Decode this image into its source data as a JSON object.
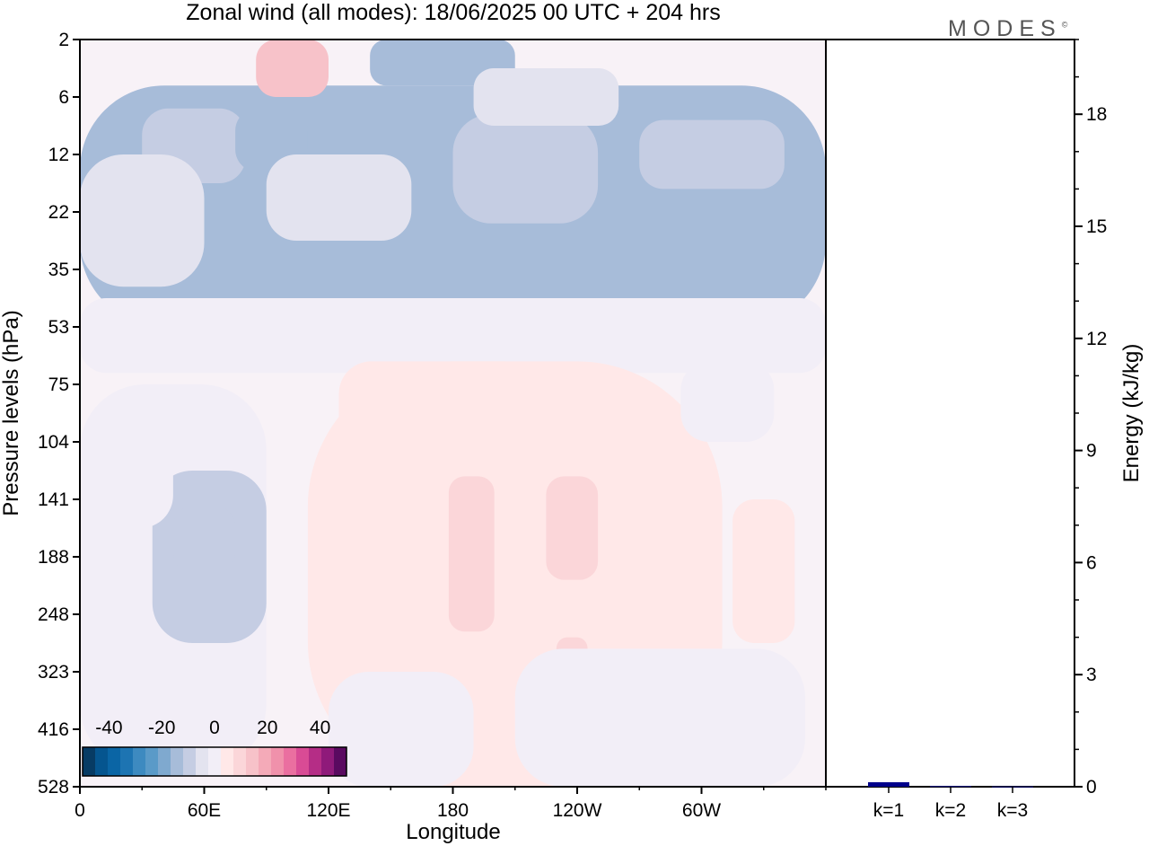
{
  "title": "Zonal wind (all modes):  18/06/2025  00 UTC  + 204 hrs",
  "logo_text": "MODES",
  "logo_mark": "©",
  "colors": {
    "panel_bg": "#f8f2f7",
    "neg": [
      "#f2eef7",
      "#e3e3ef",
      "#c5cde3",
      "#a7bcd9",
      "#7fa9cf",
      "#5a9ac8",
      "#3d8ac0",
      "#1d74b2",
      "#0a65a5",
      "#05558f",
      "#073b64"
    ],
    "pos": [
      "#ffe8e8",
      "#fbd6d9",
      "#f7c2c9",
      "#f4aab8",
      "#f091ab",
      "#ea6fa0",
      "#d94b95",
      "#b52d86",
      "#8f1a7a",
      "#5a0a60"
    ],
    "energy_bar": "#00008b"
  },
  "chart_data": [
    {
      "type": "heatmap",
      "title": "Zonal wind (all modes):  18/06/2025  00 UTC  + 204 hrs",
      "xlabel": "Longitude",
      "ylabel": "Pressure levels (hPa)",
      "x_ticks": [
        "0",
        "60E",
        "120E",
        "180",
        "120W",
        "60W"
      ],
      "x_tick_values": [
        0,
        60,
        120,
        180,
        240,
        300
      ],
      "x_range": [
        0,
        360
      ],
      "y_ticks": [
        "2",
        "6",
        "12",
        "22",
        "35",
        "53",
        "75",
        "104",
        "141",
        "188",
        "248",
        "323",
        "416",
        "528"
      ],
      "colorbar": {
        "ticks": [
          "-40",
          "-20",
          "0",
          "20",
          "40"
        ],
        "tick_values": [
          -40,
          -20,
          0,
          20,
          40
        ],
        "range": [
          -50,
          50
        ]
      },
      "blobs": [
        {
          "lon": [
            0,
            360
          ],
          "lev": [
            0.8,
            5.0
          ],
          "u": -18
        },
        {
          "lon": [
            30,
            80
          ],
          "lev": [
            1.2,
            2.5
          ],
          "u": -10
        },
        {
          "lon": [
            75,
            110
          ],
          "lev": [
            1.2,
            2.3
          ],
          "u": -15
        },
        {
          "lon": [
            180,
            250
          ],
          "lev": [
            1.3,
            3.2
          ],
          "u": -10
        },
        {
          "lon": [
            270,
            340
          ],
          "lev": [
            1.4,
            2.6
          ],
          "u": -10
        },
        {
          "lon": [
            0,
            60
          ],
          "lev": [
            2.0,
            4.3
          ],
          "u": -6
        },
        {
          "lon": [
            90,
            160
          ],
          "lev": [
            2.0,
            3.5
          ],
          "u": -6
        },
        {
          "lon": [
            85,
            120
          ],
          "lev": [
            0.0,
            1.0
          ],
          "u": 10
        },
        {
          "lon": [
            140,
            210
          ],
          "lev": [
            -0.3,
            0.8
          ],
          "u": -15
        },
        {
          "lon": [
            190,
            260
          ],
          "lev": [
            0.5,
            1.5
          ],
          "u": -6
        },
        {
          "lon": [
            0,
            360
          ],
          "lev": [
            4.5,
            5.8
          ],
          "u": -4
        },
        {
          "lon": [
            110,
            310
          ],
          "lev": [
            5.6,
            13.6
          ],
          "u": 3
        },
        {
          "lon": [
            125,
            220
          ],
          "lev": [
            5.6,
            7.2
          ],
          "u": 3
        },
        {
          "lon": [
            195,
            225
          ],
          "lev": [
            7.2,
            11.6
          ],
          "u": 4
        },
        {
          "lon": [
            178,
            200
          ],
          "lev": [
            7.6,
            10.3
          ],
          "u": 6
        },
        {
          "lon": [
            225,
            250
          ],
          "lev": [
            7.6,
            9.4
          ],
          "u": 5
        },
        {
          "lon": [
            230,
            245
          ],
          "lev": [
            10.4,
            12.0
          ],
          "u": 5
        },
        {
          "lon": [
            265,
            295
          ],
          "lev": [
            7.3,
            9.0
          ],
          "u": 4
        },
        {
          "lon": [
            315,
            345
          ],
          "lev": [
            8.0,
            10.5
          ],
          "u": 4
        },
        {
          "lon": [
            0,
            90
          ],
          "lev": [
            6.0,
            12.7
          ],
          "u": -4
        },
        {
          "lon": [
            35,
            90
          ],
          "lev": [
            7.5,
            10.5
          ],
          "u": -10
        },
        {
          "lon": [
            45,
            75
          ],
          "lev": [
            8.1,
            9.3
          ],
          "u": -10
        },
        {
          "lon": [
            0,
            45
          ],
          "lev": [
            6.5,
            8.5
          ],
          "u": -4
        },
        {
          "lon": [
            290,
            335
          ],
          "lev": [
            5.6,
            7.0
          ],
          "u": -4
        },
        {
          "lon": [
            210,
            350
          ],
          "lev": [
            10.6,
            13.6
          ],
          "u": -1.5
        },
        {
          "lon": [
            120,
            190
          ],
          "lev": [
            11.0,
            13.6
          ],
          "u": -1.5
        }
      ]
    },
    {
      "type": "bar",
      "ylabel": "Energy (kJ/kg)",
      "categories": [
        "k=1",
        "k=2",
        "k=3"
      ],
      "values": [
        0.12,
        0.02,
        0.01
      ],
      "ylim": [
        0,
        20
      ],
      "y_ticks": [
        "0",
        "3",
        "6",
        "9",
        "12",
        "15",
        "18"
      ],
      "y_tick_values": [
        0,
        3,
        6,
        9,
        12,
        15,
        18
      ]
    }
  ]
}
